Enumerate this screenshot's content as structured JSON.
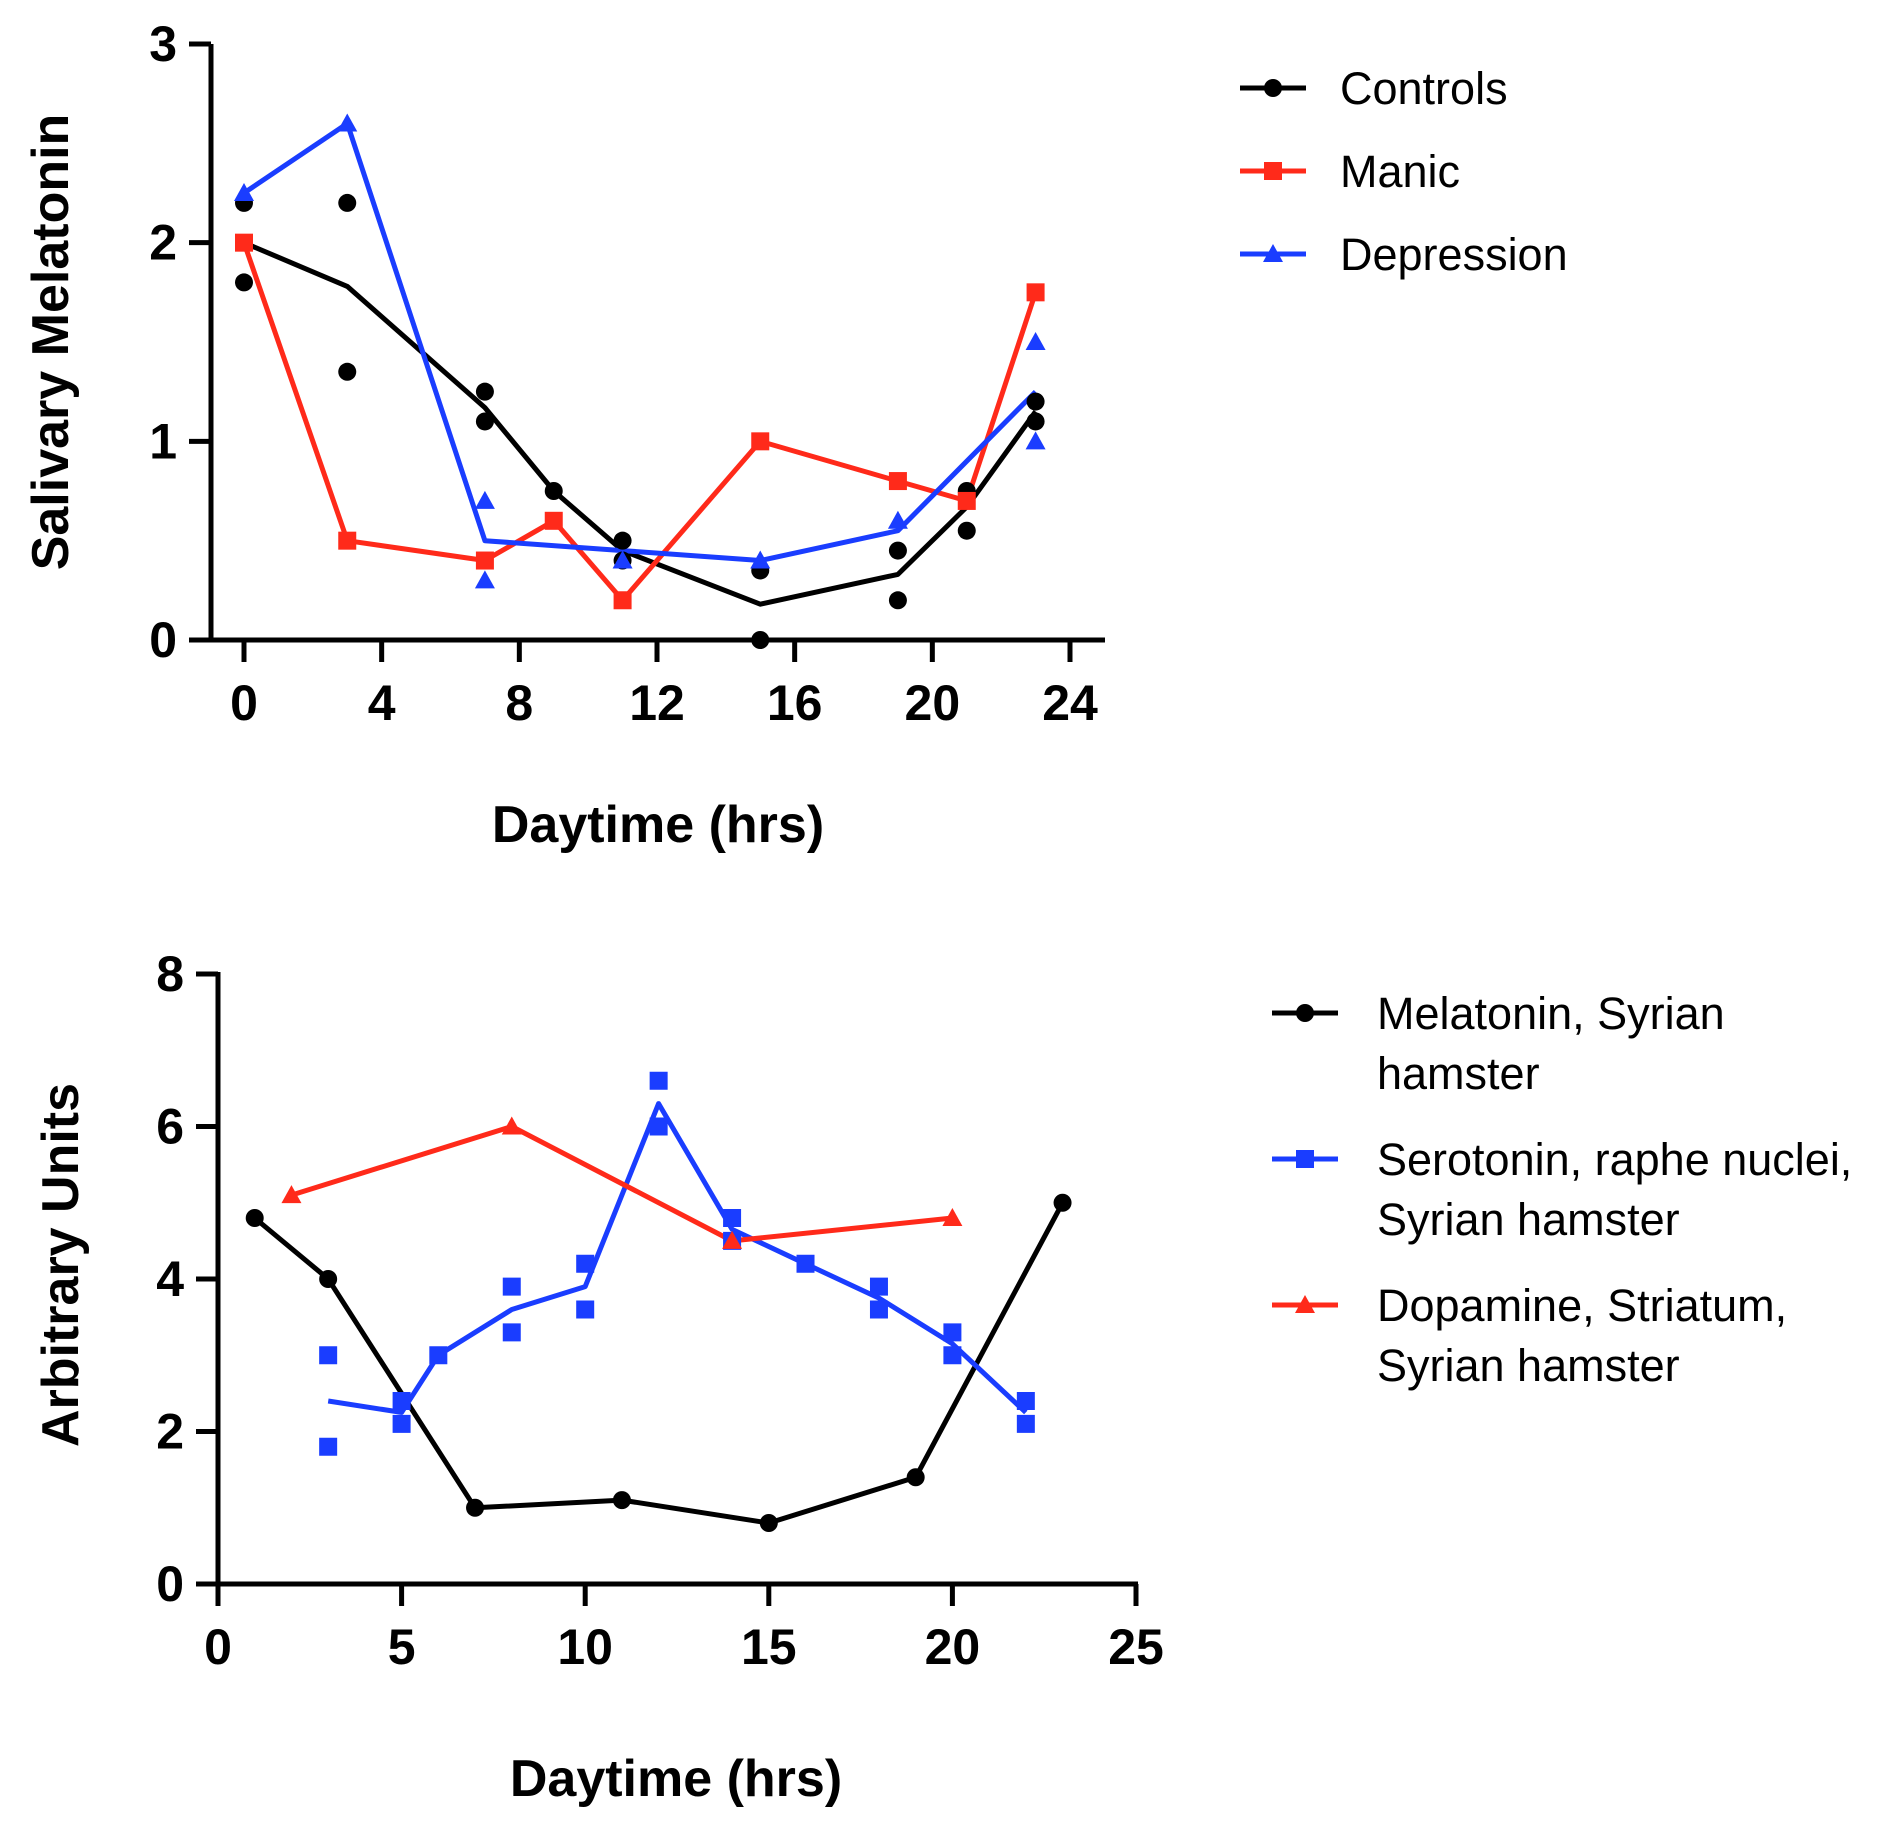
{
  "chart_data": [
    {
      "type": "line",
      "xlabel": "Daytime (hrs)",
      "ylabel": "Salivary Melatonin",
      "xlim": [
        -1,
        25
      ],
      "ylim": [
        0,
        3
      ],
      "xticks": [
        0,
        4,
        8,
        12,
        16,
        20,
        24
      ],
      "yticks": [
        0,
        1,
        2,
        3
      ],
      "legend_position": "top-right",
      "series": [
        {
          "name": "Controls",
          "color": "#000000",
          "marker": "circle",
          "line": [
            [
              0,
              2.0
            ],
            [
              3,
              1.78
            ],
            [
              7,
              1.17
            ],
            [
              9,
              0.75
            ],
            [
              11,
              0.45
            ],
            [
              15,
              0.18
            ],
            [
              19,
              0.33
            ],
            [
              21,
              0.67
            ],
            [
              23,
              1.15
            ]
          ],
          "points": [
            [
              0,
              2.2
            ],
            [
              0,
              1.8
            ],
            [
              3,
              2.2
            ],
            [
              3,
              1.35
            ],
            [
              7,
              1.25
            ],
            [
              7,
              1.1
            ],
            [
              9,
              0.75
            ],
            [
              11,
              0.5
            ],
            [
              11,
              0.4
            ],
            [
              15,
              0.35
            ],
            [
              15,
              0.0
            ],
            [
              19,
              0.45
            ],
            [
              19,
              0.2
            ],
            [
              21,
              0.75
            ],
            [
              21,
              0.55
            ],
            [
              23,
              1.2
            ],
            [
              23,
              1.1
            ]
          ]
        },
        {
          "name": "Manic",
          "color": "#ff2a1a",
          "marker": "square",
          "line": [
            [
              0,
              2.0
            ],
            [
              3,
              0.5
            ],
            [
              7,
              0.4
            ],
            [
              9,
              0.6
            ],
            [
              11,
              0.2
            ],
            [
              15,
              1.0
            ],
            [
              19,
              0.8
            ],
            [
              21,
              0.7
            ],
            [
              23,
              1.75
            ]
          ],
          "points": [
            [
              0,
              2.0
            ],
            [
              3,
              0.5
            ],
            [
              7,
              0.4
            ],
            [
              9,
              0.6
            ],
            [
              11,
              0.2
            ],
            [
              15,
              1.0
            ],
            [
              19,
              0.8
            ],
            [
              21,
              0.7
            ],
            [
              23,
              1.75
            ]
          ]
        },
        {
          "name": "Depression",
          "color": "#1a3dff",
          "marker": "triangle",
          "line": [
            [
              0,
              2.25
            ],
            [
              3,
              2.6
            ],
            [
              7,
              0.5
            ],
            [
              11,
              0.45
            ],
            [
              15,
              0.4
            ],
            [
              19,
              0.55
            ],
            [
              23,
              1.25
            ]
          ],
          "points": [
            [
              0,
              2.25
            ],
            [
              3,
              2.6
            ],
            [
              7,
              0.7
            ],
            [
              7,
              0.3
            ],
            [
              11,
              0.4
            ],
            [
              15,
              0.4
            ],
            [
              19,
              0.6
            ],
            [
              23,
              1.5
            ],
            [
              23,
              1.0
            ]
          ]
        }
      ]
    },
    {
      "type": "line",
      "xlabel": "Daytime (hrs)",
      "ylabel": "Arbitrary Units",
      "xlim": [
        0,
        25
      ],
      "ylim": [
        0,
        8
      ],
      "xticks": [
        0,
        5,
        10,
        15,
        20,
        25
      ],
      "yticks": [
        0,
        2,
        4,
        6,
        8
      ],
      "legend_position": "right",
      "series": [
        {
          "name": "Melatonin, Syrian hamster",
          "legend_lines": [
            "Melatonin, Syrian",
            "hamster"
          ],
          "color": "#000000",
          "marker": "circle",
          "line": [
            [
              1,
              4.8
            ],
            [
              3,
              4.0
            ],
            [
              7,
              1.0
            ],
            [
              11,
              1.1
            ],
            [
              15,
              0.8
            ],
            [
              19,
              1.4
            ],
            [
              23,
              5.0
            ]
          ],
          "points": [
            [
              1,
              4.8
            ],
            [
              3,
              4.0
            ],
            [
              7,
              1.0
            ],
            [
              11,
              1.1
            ],
            [
              15,
              0.8
            ],
            [
              19,
              1.4
            ],
            [
              23,
              5.0
            ]
          ]
        },
        {
          "name": "Serotonin, raphe nuclei, Syrian hamster",
          "legend_lines": [
            "Serotonin, raphe nuclei,",
            "Syrian hamster"
          ],
          "color": "#1a3dff",
          "marker": "square",
          "line": [
            [
              3,
              2.4
            ],
            [
              5,
              2.25
            ],
            [
              6,
              3.0
            ],
            [
              8,
              3.6
            ],
            [
              10,
              3.9
            ],
            [
              12,
              6.3
            ],
            [
              14,
              4.65
            ],
            [
              16,
              4.2
            ],
            [
              18,
              3.75
            ],
            [
              20,
              3.15
            ],
            [
              22,
              2.25
            ]
          ],
          "points": [
            [
              3,
              3.0
            ],
            [
              3,
              1.8
            ],
            [
              5,
              2.4
            ],
            [
              5,
              2.1
            ],
            [
              6,
              3.0
            ],
            [
              8,
              3.9
            ],
            [
              8,
              3.3
            ],
            [
              10,
              4.2
            ],
            [
              10,
              3.6
            ],
            [
              12,
              6.6
            ],
            [
              12,
              6.0
            ],
            [
              14,
              4.8
            ],
            [
              14,
              4.5
            ],
            [
              16,
              4.2
            ],
            [
              18,
              3.9
            ],
            [
              18,
              3.6
            ],
            [
              20,
              3.3
            ],
            [
              20,
              3.0
            ],
            [
              22,
              2.4
            ],
            [
              22,
              2.1
            ]
          ]
        },
        {
          "name": "Dopamine, Striatum, Syrian hamster",
          "legend_lines": [
            "Dopamine, Striatum,",
            "Syrian hamster"
          ],
          "color": "#ff2a1a",
          "marker": "triangle",
          "line": [
            [
              2,
              5.1
            ],
            [
              8,
              6.0
            ],
            [
              14,
              4.5
            ],
            [
              20,
              4.8
            ]
          ],
          "points": [
            [
              2,
              5.1
            ],
            [
              8,
              6.0
            ],
            [
              14,
              4.5
            ],
            [
              20,
              4.8
            ]
          ]
        }
      ]
    }
  ]
}
